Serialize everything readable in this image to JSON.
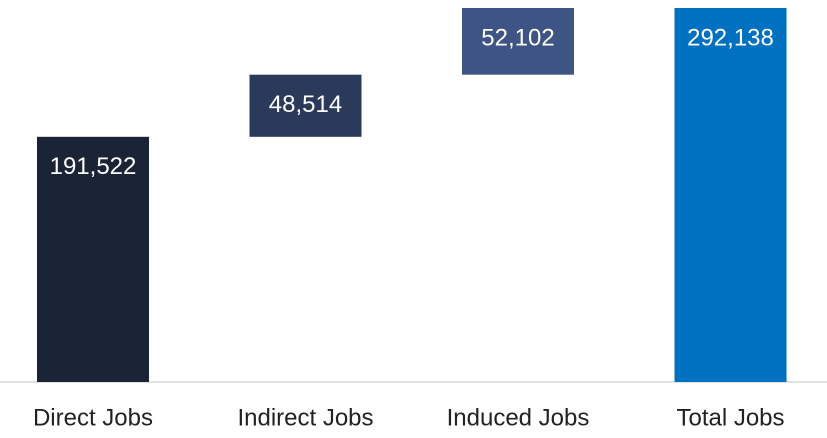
{
  "chart_data": {
    "type": "waterfall",
    "categories": [
      "Direct Jobs",
      "Indirect Jobs",
      "Induced Jobs",
      "Total Jobs"
    ],
    "values": [
      191522,
      48514,
      52102,
      292138
    ],
    "value_labels": [
      "191,522",
      "48,514",
      "52,102",
      "292,138"
    ],
    "measure": [
      "relative",
      "relative",
      "relative",
      "total"
    ],
    "colors": [
      "#1b2337",
      "#2b3a5b",
      "#3e5484",
      "#0070c0"
    ]
  }
}
